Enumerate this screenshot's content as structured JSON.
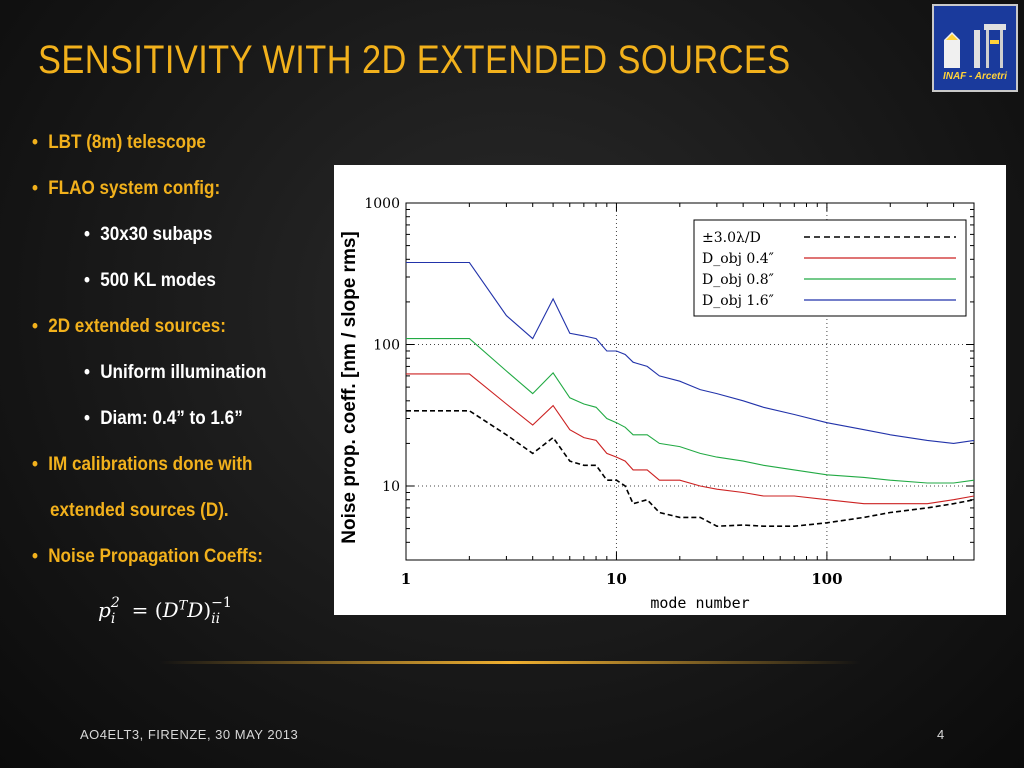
{
  "slide": {
    "title": "SENSITIVITY WITH 2D EXTENDED SOURCES",
    "logo_text": "INAF - Arcetri",
    "footer_left": "AO4ELT3, FIRENZE, 30 MAY 2013",
    "page_number": "4"
  },
  "bullets": [
    {
      "level": 1,
      "text": "LBT (8m) telescope"
    },
    {
      "level": 1,
      "text": "FLAO system config:"
    },
    {
      "level": 2,
      "text": "30x30 subaps"
    },
    {
      "level": 2,
      "text": "500 KL modes"
    },
    {
      "level": 1,
      "text": "2D extended sources:"
    },
    {
      "level": 2,
      "text": "Uniform illumination"
    },
    {
      "level": 2,
      "text": "Diam: 0.4” to 1.6”"
    },
    {
      "level": 1,
      "text": "IM calibrations done with"
    },
    {
      "level": 1,
      "text": "extended sources (D)."
    },
    {
      "level": 1,
      "text": "Noise Propagation Coeffs:"
    }
  ],
  "formula": "p_i^2 = (D^T D)^{-1}_{ii}",
  "colors": {
    "accent": "#f2b11c",
    "series_black": "#000000",
    "series_red": "#cc2222",
    "series_green": "#22aa44",
    "series_blue": "#2233aa"
  },
  "chart_data": {
    "type": "line",
    "xlabel": "mode number",
    "ylabel": "Noise prop. coeff.  [nm / slope rms]",
    "xscale": "log",
    "yscale": "log",
    "xlim": [
      1,
      500
    ],
    "ylim": [
      3,
      1000
    ],
    "xticks": [
      "1",
      "10",
      "100"
    ],
    "yticks": [
      "10",
      "100",
      "1000"
    ],
    "grid": true,
    "legend_position": "top-right",
    "series": [
      {
        "name": "±3.0λ/D",
        "style": "dashed",
        "color": "#000000",
        "x": [
          1,
          2,
          3,
          4,
          5,
          6,
          7,
          8,
          9,
          10,
          11,
          12,
          14,
          16,
          20,
          25,
          30,
          40,
          50,
          70,
          100,
          150,
          200,
          300,
          400,
          500
        ],
        "y": [
          34,
          34,
          23,
          17,
          22,
          15,
          14,
          14,
          11,
          11,
          10,
          7.5,
          8,
          6.5,
          6,
          6,
          5.2,
          5.3,
          5.2,
          5.2,
          5.5,
          6,
          6.5,
          7,
          7.5,
          8
        ]
      },
      {
        "name": "D_obj 0.4″",
        "style": "solid",
        "color": "#cc2222",
        "x": [
          1,
          2,
          3,
          4,
          5,
          6,
          7,
          8,
          9,
          10,
          11,
          12,
          14,
          16,
          20,
          25,
          30,
          40,
          50,
          70,
          100,
          150,
          200,
          300,
          400,
          500
        ],
        "y": [
          62,
          62,
          38,
          27,
          37,
          25,
          22,
          21,
          17,
          16,
          15,
          13,
          13,
          11,
          11,
          10,
          9.5,
          9,
          8.5,
          8.5,
          8,
          7.5,
          7.5,
          7.5,
          8,
          8.5
        ]
      },
      {
        "name": "D_obj 0.8″",
        "style": "solid",
        "color": "#22aa44",
        "x": [
          1,
          2,
          3,
          4,
          5,
          6,
          7,
          8,
          9,
          10,
          11,
          12,
          14,
          16,
          20,
          25,
          30,
          40,
          50,
          70,
          100,
          150,
          200,
          300,
          400,
          500
        ],
        "y": [
          110,
          110,
          65,
          45,
          63,
          42,
          38,
          36,
          30,
          28,
          26,
          23,
          23,
          20,
          19,
          17,
          16,
          15,
          14,
          13,
          12,
          11.5,
          11,
          10.5,
          10.5,
          11
        ]
      },
      {
        "name": "D_obj 1.6″",
        "style": "solid",
        "color": "#2233aa",
        "x": [
          1,
          2,
          3,
          4,
          5,
          6,
          7,
          8,
          9,
          10,
          11,
          12,
          14,
          16,
          20,
          25,
          30,
          40,
          50,
          70,
          100,
          150,
          200,
          300,
          400,
          500
        ],
        "y": [
          380,
          380,
          160,
          110,
          210,
          120,
          115,
          110,
          90,
          90,
          85,
          75,
          70,
          60,
          55,
          48,
          45,
          40,
          36,
          32,
          28,
          25,
          23,
          21,
          20,
          21
        ]
      }
    ]
  }
}
